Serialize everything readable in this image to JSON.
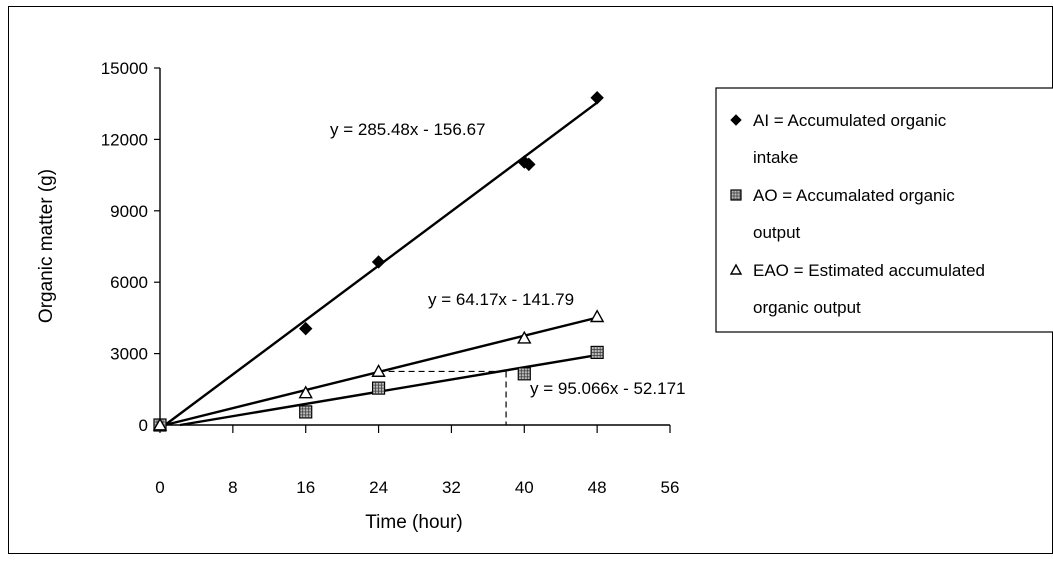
{
  "chart_data": {
    "type": "scatter",
    "title": "",
    "xlabel": "Time (hour)",
    "ylabel": "Organic matter (g)",
    "xlim": [
      0,
      56
    ],
    "ylim": [
      0,
      15000
    ],
    "x_ticks": [
      "0",
      "8",
      "16",
      "24",
      "32",
      "40",
      "48",
      "56"
    ],
    "y_ticks": [
      "0",
      "3000",
      "6000",
      "9000",
      "12000",
      "15000"
    ],
    "grid": false,
    "legend_placement": "right",
    "series": [
      {
        "name": "AI = Accumulated organic intake",
        "marker": "diamond",
        "x": [
          0,
          16,
          24,
          40,
          40.5,
          48
        ],
        "y": [
          0,
          4050,
          6850,
          11050,
          10950,
          13750
        ],
        "trendline": {
          "equation": "y = 285.48x - 156.67",
          "slope": 285.48,
          "intercept": -156.67
        }
      },
      {
        "name": "AO = Accumalated organic output",
        "marker": "hatched-square",
        "x": [
          0,
          16,
          24,
          40,
          48
        ],
        "y": [
          0,
          550,
          1550,
          2150,
          3050
        ],
        "trendline": {
          "equation": "y = 64.17x - 141.79",
          "slope": 64.17,
          "intercept": -141.79
        }
      },
      {
        "name": "EAO = Estimated accumulated organic output",
        "marker": "triangle",
        "x": [
          0,
          16,
          24,
          40,
          48
        ],
        "y": [
          0,
          1350,
          2250,
          3650,
          4550
        ],
        "trendline": {
          "equation": "y = 95.066x - 52.171",
          "slope": 95.066,
          "intercept": -52.171
        }
      }
    ],
    "annotation_guide": {
      "x": 38,
      "y": 2250
    }
  },
  "legend": {
    "items": [
      {
        "line1": "AI = Accumulated organic",
        "line2": "intake"
      },
      {
        "line1": "AO = Accumalated organic",
        "line2": "output"
      },
      {
        "line1": "EAO = Estimated accumulated",
        "line2": "organic output"
      }
    ]
  }
}
